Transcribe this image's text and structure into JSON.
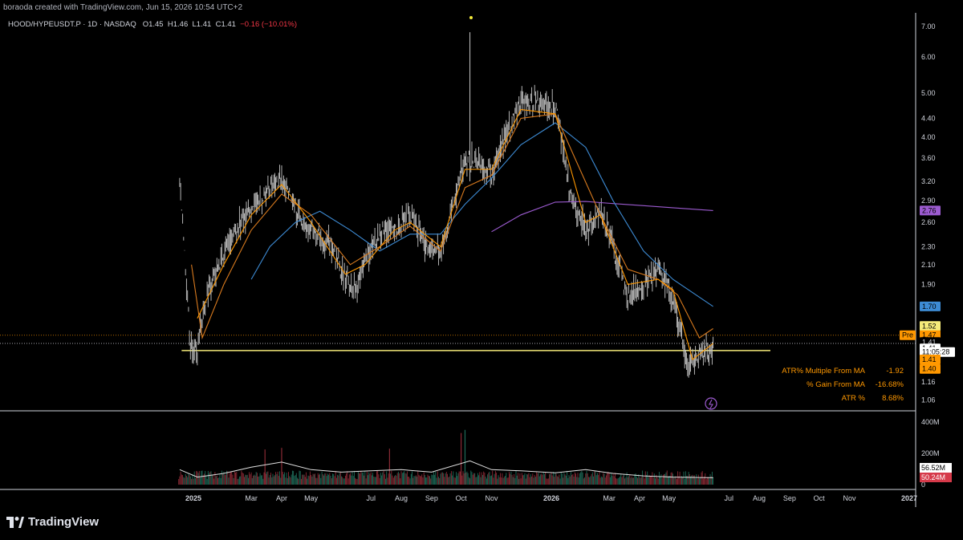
{
  "header": {
    "created_by": "boraoda created with TradingView.com, Jun 15, 2026 10:54 UTC+2",
    "symbol": "HOOD/HYPEUSDT.P · 1D · NASDAQ",
    "open": "O1.45",
    "high": "H1.46",
    "low": "L1.41",
    "close": "C1.41",
    "change": "−0.16 (−10.01%)"
  },
  "colors": {
    "background": "#000000",
    "candle": "#c8c8c8",
    "ma_fast": "#ff9800",
    "ma_mid": "#d87a1e",
    "ma_blue": "#3d8bd4",
    "ma_purple": "#9c5bd0",
    "support_line": "#f5eb7a",
    "vol_up": "#1e6b58",
    "vol_down": "#8a2a35",
    "vol_ma": "#e0e0e0"
  },
  "chart_data": {
    "type": "candlestick",
    "scale": "log",
    "y_ticks": [
      "7.00",
      "6.00",
      "5.00",
      "4.40",
      "4.00",
      "3.60",
      "3.20",
      "2.90",
      "2.60",
      "2.30",
      "2.10",
      "1.90",
      "1.41",
      "1.16",
      "1.06"
    ],
    "x_ticks": [
      "2025",
      "Mar",
      "Apr",
      "May",
      "Jul",
      "Aug",
      "Sep",
      "Oct",
      "Nov",
      "2026",
      "Mar",
      "Apr",
      "May",
      "Jul",
      "Aug",
      "Sep",
      "Oct",
      "Nov",
      "2027"
    ],
    "price_path": [
      {
        "date": "2024-12-18",
        "price": 3.3
      },
      {
        "date": "2024-12-22",
        "price": 2.4
      },
      {
        "date": "2024-12-28",
        "price": 1.45
      },
      {
        "date": "2025-01-05",
        "price": 1.35
      },
      {
        "date": "2025-01-15",
        "price": 1.8
      },
      {
        "date": "2025-02-01",
        "price": 2.2
      },
      {
        "date": "2025-02-15",
        "price": 2.55
      },
      {
        "date": "2025-03-01",
        "price": 2.8
      },
      {
        "date": "2025-03-20",
        "price": 3.05
      },
      {
        "date": "2025-04-01",
        "price": 3.25
      },
      {
        "date": "2025-04-15",
        "price": 2.75
      },
      {
        "date": "2025-05-01",
        "price": 2.5
      },
      {
        "date": "2025-05-20",
        "price": 2.35
      },
      {
        "date": "2025-06-05",
        "price": 1.95
      },
      {
        "date": "2025-06-15",
        "price": 1.85
      },
      {
        "date": "2025-06-25",
        "price": 2.2
      },
      {
        "date": "2025-07-10",
        "price": 2.45
      },
      {
        "date": "2025-07-25",
        "price": 2.55
      },
      {
        "date": "2025-08-10",
        "price": 2.7
      },
      {
        "date": "2025-08-25",
        "price": 2.35
      },
      {
        "date": "2025-09-10",
        "price": 2.2
      },
      {
        "date": "2025-09-25",
        "price": 3.0
      },
      {
        "date": "2025-10-05",
        "price": 3.6
      },
      {
        "date": "2025-10-20",
        "price": 3.5
      },
      {
        "date": "2025-11-01",
        "price": 3.3
      },
      {
        "date": "2025-11-15",
        "price": 4.0
      },
      {
        "date": "2025-12-01",
        "price": 4.8
      },
      {
        "date": "2025-12-20",
        "price": 4.75
      },
      {
        "date": "2026-01-05",
        "price": 4.7
      },
      {
        "date": "2026-01-20",
        "price": 3.0
      },
      {
        "date": "2026-02-05",
        "price": 2.5
      },
      {
        "date": "2026-02-20",
        "price": 2.75
      },
      {
        "date": "2026-03-05",
        "price": 2.3
      },
      {
        "date": "2026-03-20",
        "price": 1.75
      },
      {
        "date": "2026-04-05",
        "price": 1.9
      },
      {
        "date": "2026-04-20",
        "price": 2.05
      },
      {
        "date": "2026-05-05",
        "price": 1.8
      },
      {
        "date": "2026-05-20",
        "price": 1.25
      },
      {
        "date": "2026-06-05",
        "price": 1.35
      },
      {
        "date": "2026-06-15",
        "price": 1.41
      }
    ],
    "spike": {
      "date": "2025-10-10",
      "high": 6.8
    },
    "ma_fast": [
      {
        "date": "2025-01-05",
        "price": 1.6
      },
      {
        "date": "2025-02-01",
        "price": 2.1
      },
      {
        "date": "2025-03-01",
        "price": 2.7
      },
      {
        "date": "2025-04-01",
        "price": 3.15
      },
      {
        "date": "2025-05-01",
        "price": 2.6
      },
      {
        "date": "2025-06-05",
        "price": 2.0
      },
      {
        "date": "2025-06-25",
        "price": 2.1
      },
      {
        "date": "2025-07-25",
        "price": 2.5
      },
      {
        "date": "2025-08-10",
        "price": 2.6
      },
      {
        "date": "2025-09-10",
        "price": 2.3
      },
      {
        "date": "2025-10-05",
        "price": 3.4
      },
      {
        "date": "2025-11-01",
        "price": 3.4
      },
      {
        "date": "2025-12-01",
        "price": 4.6
      },
      {
        "date": "2026-01-05",
        "price": 4.5
      },
      {
        "date": "2026-02-05",
        "price": 2.6
      },
      {
        "date": "2026-02-20",
        "price": 2.7
      },
      {
        "date": "2026-03-20",
        "price": 1.9
      },
      {
        "date": "2026-04-20",
        "price": 1.95
      },
      {
        "date": "2026-05-05",
        "price": 1.85
      },
      {
        "date": "2026-05-25",
        "price": 1.3
      },
      {
        "date": "2026-06-15",
        "price": 1.41
      }
    ],
    "ma_mid": [
      {
        "date": "2024-12-30",
        "price": 2.1
      },
      {
        "date": "2025-01-10",
        "price": 1.45
      },
      {
        "date": "2025-02-01",
        "price": 1.9
      },
      {
        "date": "2025-03-01",
        "price": 2.5
      },
      {
        "date": "2025-04-01",
        "price": 3.0
      },
      {
        "date": "2025-05-01",
        "price": 2.7
      },
      {
        "date": "2025-06-10",
        "price": 2.1
      },
      {
        "date": "2025-07-10",
        "price": 2.3
      },
      {
        "date": "2025-08-10",
        "price": 2.55
      },
      {
        "date": "2025-09-10",
        "price": 2.25
      },
      {
        "date": "2025-10-05",
        "price": 3.1
      },
      {
        "date": "2025-11-01",
        "price": 3.3
      },
      {
        "date": "2025-12-01",
        "price": 4.4
      },
      {
        "date": "2026-01-05",
        "price": 4.5
      },
      {
        "date": "2026-01-25",
        "price": 3.6
      },
      {
        "date": "2026-02-20",
        "price": 2.7
      },
      {
        "date": "2026-03-20",
        "price": 2.05
      },
      {
        "date": "2026-04-20",
        "price": 1.95
      },
      {
        "date": "2026-05-10",
        "price": 1.8
      },
      {
        "date": "2026-06-01",
        "price": 1.45
      },
      {
        "date": "2026-06-15",
        "price": 1.52
      }
    ],
    "ma_blue": [
      {
        "date": "2025-03-01",
        "price": 1.95
      },
      {
        "date": "2025-03-20",
        "price": 2.3
      },
      {
        "date": "2025-04-15",
        "price": 2.6
      },
      {
        "date": "2025-05-10",
        "price": 2.75
      },
      {
        "date": "2025-06-10",
        "price": 2.5
      },
      {
        "date": "2025-07-10",
        "price": 2.25
      },
      {
        "date": "2025-08-10",
        "price": 2.45
      },
      {
        "date": "2025-09-10",
        "price": 2.45
      },
      {
        "date": "2025-10-05",
        "price": 2.85
      },
      {
        "date": "2025-11-01",
        "price": 3.25
      },
      {
        "date": "2025-12-01",
        "price": 3.85
      },
      {
        "date": "2026-01-05",
        "price": 4.3
      },
      {
        "date": "2026-02-05",
        "price": 3.8
      },
      {
        "date": "2026-03-05",
        "price": 2.9
      },
      {
        "date": "2026-04-05",
        "price": 2.25
      },
      {
        "date": "2026-05-05",
        "price": 1.95
      },
      {
        "date": "2026-06-15",
        "price": 1.7
      }
    ],
    "ma_purple": [
      {
        "date": "2025-11-01",
        "price": 2.48
      },
      {
        "date": "2025-12-01",
        "price": 2.7
      },
      {
        "date": "2026-01-05",
        "price": 2.88
      },
      {
        "date": "2026-02-05",
        "price": 2.89
      },
      {
        "date": "2026-03-05",
        "price": 2.86
      },
      {
        "date": "2026-04-05",
        "price": 2.83
      },
      {
        "date": "2026-05-05",
        "price": 2.8
      },
      {
        "date": "2026-06-15",
        "price": 2.76
      }
    ],
    "support_level": 1.36,
    "current_price": 1.41,
    "prior_close_level": 1.47,
    "price_labels": [
      {
        "text": "2.76",
        "price": 2.76,
        "color": "#9c5bd0",
        "text_color": "#000000"
      },
      {
        "text": "1.70",
        "price": 1.7,
        "color": "#3d8bd4",
        "text_color": "#000000"
      },
      {
        "text": "1.52",
        "price": 1.54,
        "color": "#f5eb7a",
        "text_color": "#000000"
      },
      {
        "text": "1.47",
        "price": 1.47,
        "color": "#ff9800",
        "text_color": "#000000"
      },
      {
        "text": "1.41",
        "price": 1.42,
        "color": "#000000",
        "text_color": "#d1d4dc"
      },
      {
        "text": "1.41",
        "price": 1.375,
        "color": "#ffffff",
        "text_color": "#000000"
      },
      {
        "text": "11:05:28",
        "price": 1.35,
        "color": "#ffffff",
        "text_color": "#000000"
      },
      {
        "text": "1.41",
        "price": 1.3,
        "color": "#ff9800",
        "text_color": "#000000"
      },
      {
        "text": "1.40",
        "price": 1.24,
        "color": "#ff9800",
        "text_color": "#000000"
      }
    ],
    "pre_label": "Pre",
    "volume_ticks": [
      "400M",
      "200M",
      "0"
    ],
    "volume_labels": [
      {
        "text": "56.52M",
        "value": 56.52,
        "color": "#ffffff",
        "text_color": "#000000"
      },
      {
        "text": "50.24M",
        "value": 50.24,
        "color": "#d63a4a",
        "text_color": "#ffffff"
      }
    ],
    "volume_max_tick": 400,
    "volume_profile": [
      {
        "date": "2024-12-18",
        "value": 120
      },
      {
        "date": "2025-01-05",
        "value": 60
      },
      {
        "date": "2025-02-01",
        "value": 90
      },
      {
        "date": "2025-03-01",
        "value": 140
      },
      {
        "date": "2025-04-01",
        "value": 180
      },
      {
        "date": "2025-05-01",
        "value": 120
      },
      {
        "date": "2025-06-01",
        "value": 100
      },
      {
        "date": "2025-07-01",
        "value": 110
      },
      {
        "date": "2025-08-01",
        "value": 120
      },
      {
        "date": "2025-09-01",
        "value": 100
      },
      {
        "date": "2025-10-10",
        "value": 190
      },
      {
        "date": "2025-11-01",
        "value": 120
      },
      {
        "date": "2025-12-01",
        "value": 110
      },
      {
        "date": "2026-01-05",
        "value": 95
      },
      {
        "date": "2026-02-05",
        "value": 120
      },
      {
        "date": "2026-03-05",
        "value": 90
      },
      {
        "date": "2026-04-05",
        "value": 70
      },
      {
        "date": "2026-05-05",
        "value": 60
      },
      {
        "date": "2026-06-15",
        "value": 55
      }
    ],
    "volume_spikes": [
      {
        "date": "2025-10-05",
        "value": 350,
        "up": true
      },
      {
        "date": "2025-10-01",
        "value": 330,
        "up": false
      },
      {
        "date": "2025-07-20",
        "value": 230,
        "up": false
      },
      {
        "date": "2025-04-01",
        "value": 235,
        "up": false
      },
      {
        "date": "2025-03-15",
        "value": 225,
        "up": false
      }
    ],
    "stats": [
      {
        "label": "ATR% Multiple From MA",
        "value": "-1.92"
      },
      {
        "label": "% Gain From MA",
        "value": "-16.68%"
      },
      {
        "label": "ATR %",
        "value": "8.68%"
      }
    ]
  },
  "footer": {
    "brand": "TradingView"
  }
}
